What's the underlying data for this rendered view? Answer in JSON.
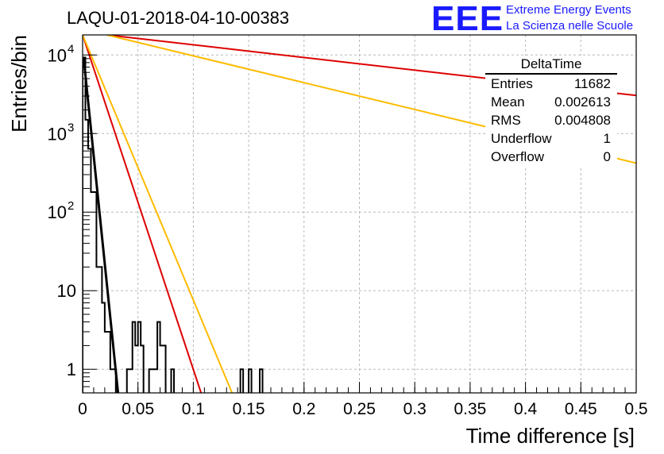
{
  "header": {
    "title": "LAQU-01-2018-04-10-00383",
    "logo_text": "EEE",
    "logo_line1": "Extreme Energy Events",
    "logo_line2": "La Scienza nelle Scuole"
  },
  "stats_box": {
    "name": "DeltaTime",
    "rows": [
      {
        "label": "Entries",
        "value": "11682"
      },
      {
        "label": "Mean",
        "value": "0.002613"
      },
      {
        "label": "RMS",
        "value": "0.004808"
      },
      {
        "label": "Underflow",
        "value": "1"
      },
      {
        "label": "Overflow",
        "value": "0"
      }
    ]
  },
  "chart_data": {
    "type": "histogram",
    "xlabel": "Time difference [s]",
    "ylabel": "Entries/bin",
    "xlim": [
      0,
      0.5
    ],
    "ylim": [
      0.5,
      18000
    ],
    "yscale": "log",
    "grid": true,
    "x_ticks": [
      "0",
      "0.05",
      "0.1",
      "0.15",
      "0.2",
      "0.25",
      "0.3",
      "0.35",
      "0.4",
      "0.45",
      "0.5"
    ],
    "y_ticks": [
      {
        "value": 1,
        "label": "1"
      },
      {
        "value": 10,
        "label": "10"
      },
      {
        "value": 100,
        "label": "10",
        "exp": "2"
      },
      {
        "value": 1000,
        "label": "10",
        "exp": "3"
      },
      {
        "value": 10000,
        "label": "10",
        "exp": "4"
      }
    ],
    "histogram": {
      "bin_width": 0.0025,
      "color": "#000000",
      "counts": [
        9300,
        1500,
        640,
        180,
        180,
        20,
        20,
        7,
        3,
        3,
        1,
        1,
        0,
        0,
        0,
        0,
        1,
        1,
        4,
        2,
        4,
        2,
        0,
        0,
        1,
        1,
        1,
        4,
        2,
        2,
        0,
        0,
        1,
        0,
        0,
        0,
        0,
        0,
        0,
        0,
        0,
        0,
        0,
        0,
        0,
        0,
        0,
        0,
        0,
        0,
        0,
        0,
        0,
        0,
        0,
        0,
        0,
        1,
        0,
        0,
        1,
        0,
        0,
        0,
        1,
        0,
        0,
        0
      ]
    },
    "lines": [
      {
        "color": "#000000",
        "points": [
          [
            0.001,
            9000
          ],
          [
            0.032,
            0.5
          ]
        ]
      },
      {
        "color": "#dd0000",
        "points": [
          [
            0.0,
            18000
          ],
          [
            0.107,
            0.5
          ]
        ]
      },
      {
        "color": "#ffbb00",
        "points": [
          [
            0.0,
            18000
          ],
          [
            0.135,
            0.5
          ]
        ]
      },
      {
        "color": "#dd0000",
        "points": [
          [
            0.022,
            18000
          ],
          [
            0.5,
            3050
          ]
        ]
      },
      {
        "color": "#ffbb00",
        "points": [
          [
            0.022,
            18000
          ],
          [
            0.5,
            420
          ]
        ]
      }
    ]
  }
}
